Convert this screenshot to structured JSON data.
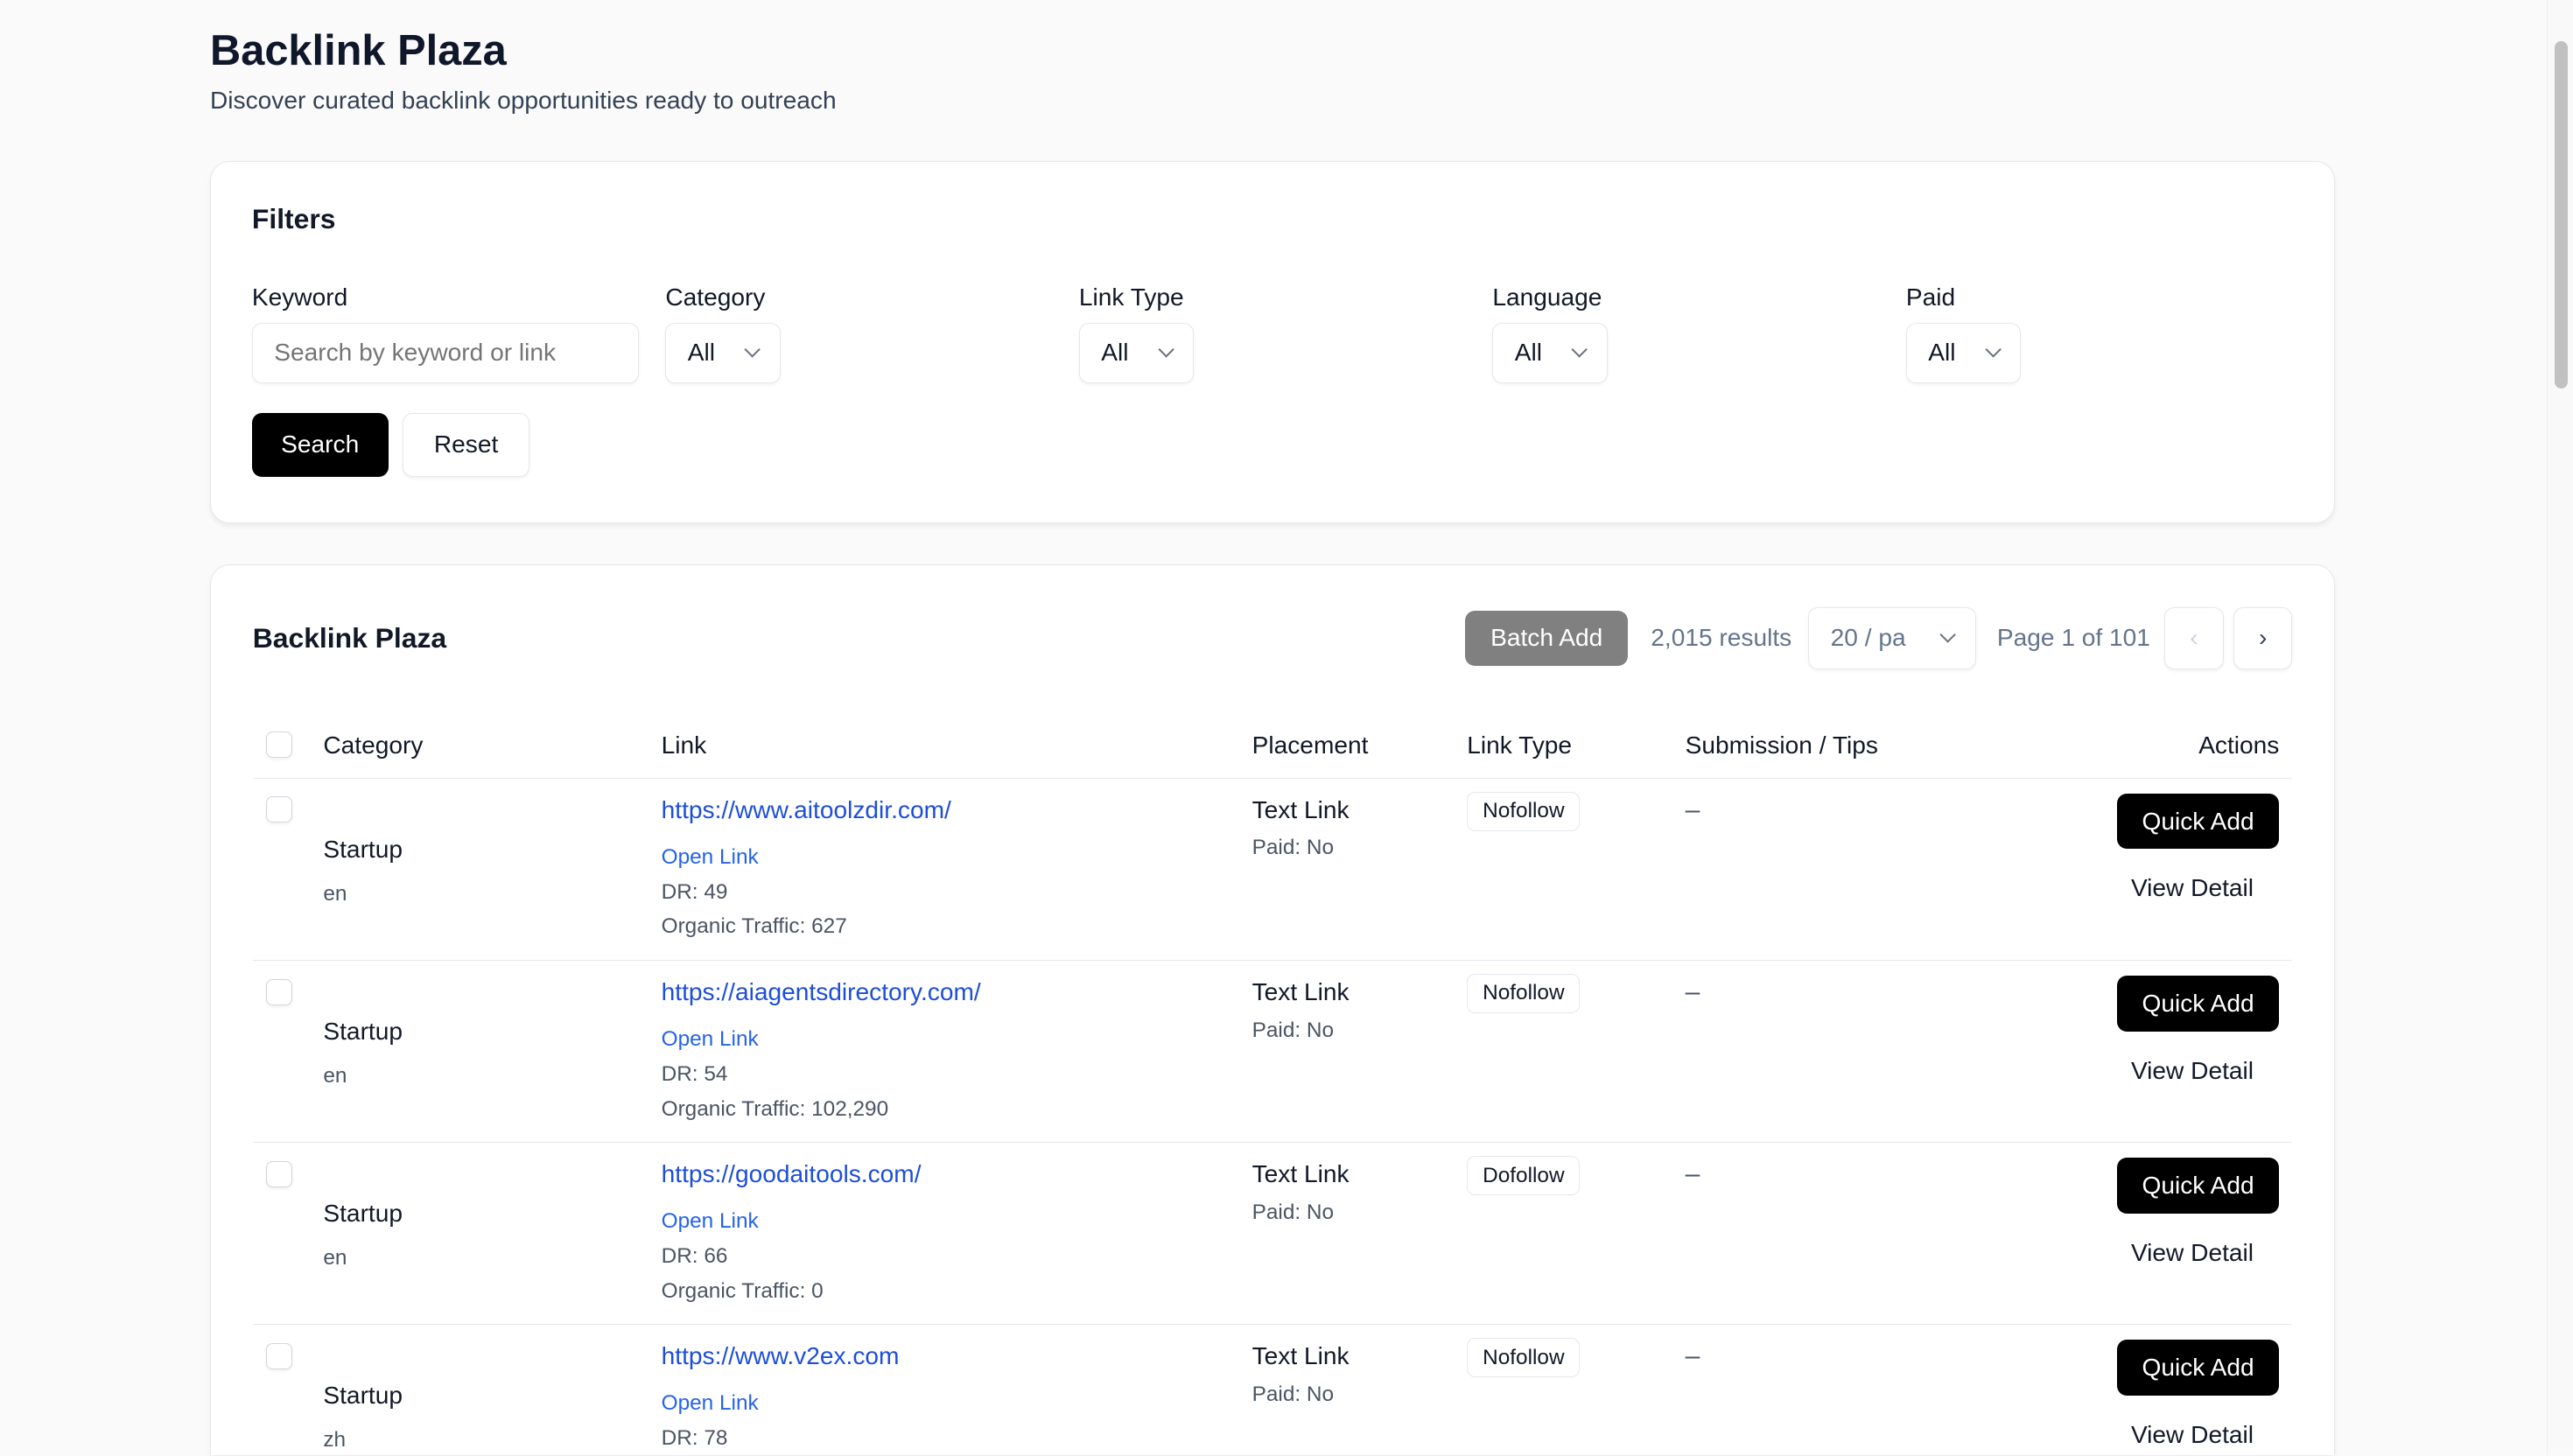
{
  "header": {
    "title": "Backlink Plaza",
    "subtitle": "Discover curated backlink opportunities ready to outreach"
  },
  "filters": {
    "title": "Filters",
    "keyword": {
      "label": "Keyword",
      "placeholder": "Search by keyword or link"
    },
    "category": {
      "label": "Category",
      "value": "All"
    },
    "link_type": {
      "label": "Link Type",
      "value": "All"
    },
    "language": {
      "label": "Language",
      "value": "All"
    },
    "paid": {
      "label": "Paid",
      "value": "All"
    },
    "search_label": "Search",
    "reset_label": "Reset"
  },
  "list": {
    "title": "Backlink Plaza",
    "batch_add_label": "Batch Add",
    "results": "2,015 results",
    "page_size": "20 / pa",
    "page_info": "Page 1 of 101",
    "prev": "‹",
    "next": "›",
    "columns": [
      "Category",
      "Link",
      "Placement",
      "Link Type",
      "Submission / Tips",
      "Actions"
    ],
    "rows": [
      {
        "category": "Startup",
        "lang": "en",
        "url": "https://www.aitoolzdir.com/",
        "open": "Open Link",
        "dr": "DR: 49",
        "traffic": "Organic Traffic: 627",
        "placement": "Text Link",
        "paid": "Paid: No",
        "link_type": "Nofollow",
        "tips": "–",
        "quick_add": "Quick Add",
        "view_detail": "View Detail"
      },
      {
        "category": "Startup",
        "lang": "en",
        "url": "https://aiagentsdirectory.com/",
        "open": "Open Link",
        "dr": "DR: 54",
        "traffic": "Organic Traffic: 102,290",
        "placement": "Text Link",
        "paid": "Paid: No",
        "link_type": "Nofollow",
        "tips": "–",
        "quick_add": "Quick Add",
        "view_detail": "View Detail"
      },
      {
        "category": "Startup",
        "lang": "en",
        "url": "https://goodaitools.com/",
        "open": "Open Link",
        "dr": "DR: 66",
        "traffic": "Organic Traffic: 0",
        "placement": "Text Link",
        "paid": "Paid: No",
        "link_type": "Dofollow",
        "tips": "–",
        "quick_add": "Quick Add",
        "view_detail": "View Detail"
      },
      {
        "category": "Startup",
        "lang": "zh",
        "url": "https://www.v2ex.com",
        "open": "Open Link",
        "dr": "DR: 78",
        "traffic": "",
        "placement": "Text Link",
        "paid": "Paid: No",
        "link_type": "Nofollow",
        "tips": "–",
        "quick_add": "Quick Add",
        "view_detail": "View Detail"
      }
    ]
  }
}
